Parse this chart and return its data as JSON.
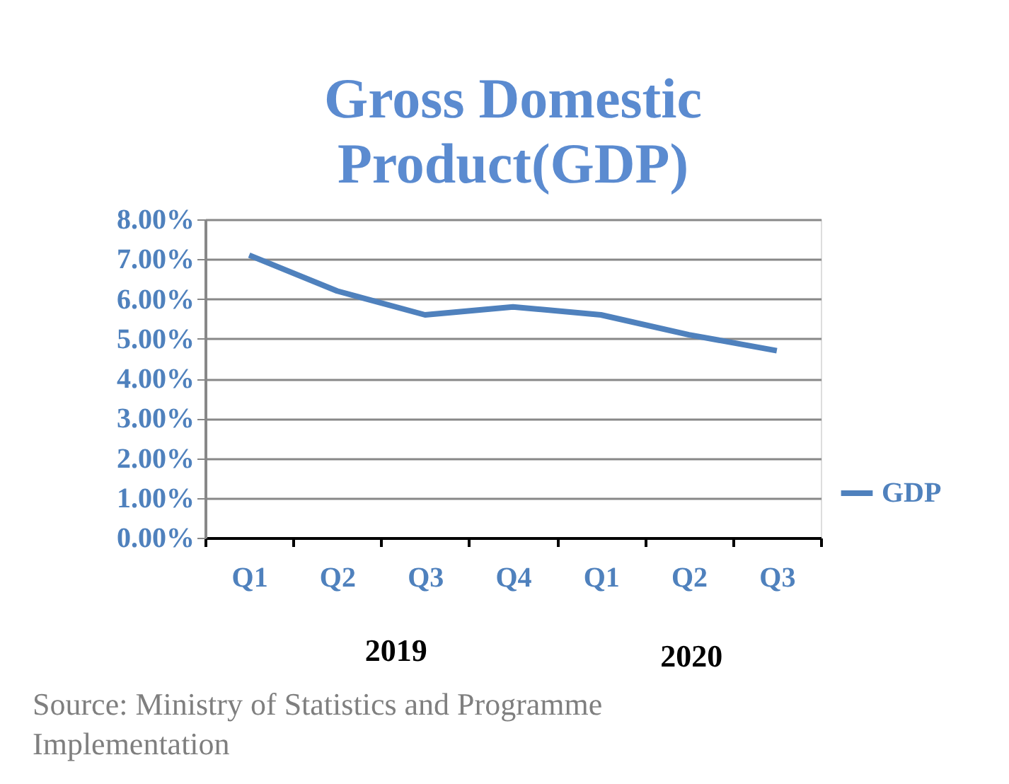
{
  "chart_data": {
    "type": "line",
    "title": "Gross Domestic Product(GDP)",
    "categories": [
      "Q1",
      "Q2",
      "Q3",
      "Q4",
      "Q1",
      "Q2",
      "Q3"
    ],
    "series": [
      {
        "name": "GDP",
        "color": "#4f81bd",
        "values": [
          7.1,
          6.2,
          5.6,
          5.8,
          5.6,
          5.1,
          4.7
        ]
      }
    ],
    "ylim": [
      0,
      8
    ],
    "yticks": [
      {
        "value": 0,
        "label": "0.00%"
      },
      {
        "value": 1,
        "label": "1.00%"
      },
      {
        "value": 2,
        "label": "2.00%"
      },
      {
        "value": 3,
        "label": "3.00%"
      },
      {
        "value": 4,
        "label": "4.00%"
      },
      {
        "value": 5,
        "label": "5.00%"
      },
      {
        "value": 6,
        "label": "6.00%"
      },
      {
        "value": 7,
        "label": "7.00%"
      },
      {
        "value": 8,
        "label": "8.00%"
      }
    ],
    "grid": "y",
    "legend": "right",
    "marker": "none",
    "line_style": "solid",
    "annotations": [
      "2019",
      "2020",
      "Source: Ministry of Statistics and Programme Implementation"
    ]
  }
}
